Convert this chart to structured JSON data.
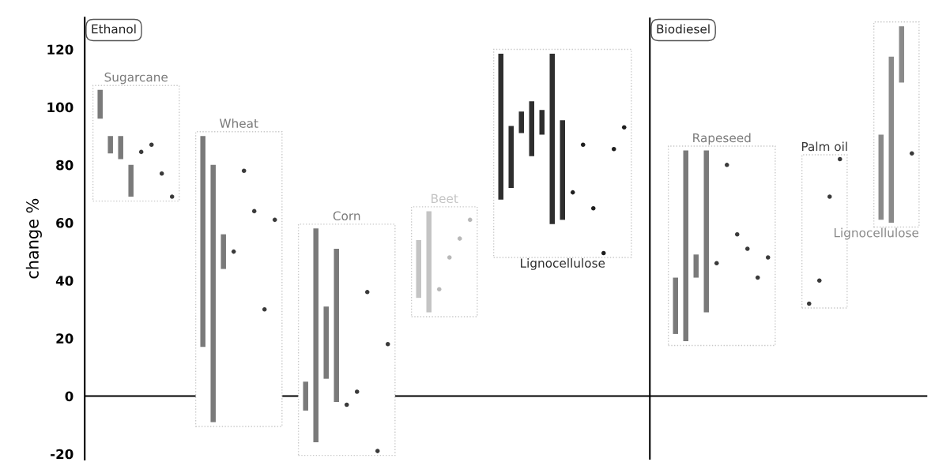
{
  "chart_data": {
    "type": "bar",
    "ylabel": "change %",
    "ylim": [
      -22,
      131
    ],
    "yticks": [
      -20,
      0,
      20,
      40,
      60,
      80,
      100,
      120
    ],
    "tick_labels": "y",
    "annotations": [
      "Ethanol",
      "Biodiesel"
    ],
    "categories": [
      null,
      null,
      null,
      null,
      null,
      null,
      null,
      null,
      null,
      null,
      null,
      null,
      null,
      null,
      null,
      null,
      null,
      null,
      null,
      null,
      null,
      null,
      null,
      null,
      null,
      null,
      null,
      null,
      null,
      null,
      null,
      null,
      null,
      null,
      null,
      null,
      null,
      null,
      null,
      null,
      null,
      null,
      null,
      null,
      null,
      null,
      null,
      null,
      null,
      null,
      null,
      null,
      null,
      null,
      null,
      null,
      null,
      null,
      null,
      null,
      null,
      null,
      null,
      null,
      null,
      null,
      null,
      null,
      null,
      null,
      null,
      null,
      null,
      null,
      null,
      null,
      null,
      null,
      null,
      null,
      null,
      null
    ],
    "ref_lines": [
      {
        "axis": "y",
        "value": 0,
        "color": "#000000"
      }
    ],
    "series": [
      {
        "name": "Sugarcane",
        "color": "#7a7a7a",
        "values": [
          null,
          10,
          6,
          8,
          11,
          null,
          null,
          null,
          null,
          null,
          null,
          null,
          null,
          null,
          null,
          null,
          null,
          null,
          null,
          null,
          null,
          null,
          null,
          null,
          null,
          null,
          null,
          null,
          null,
          null,
          null,
          null,
          null,
          null,
          null,
          null,
          null,
          null,
          null,
          null,
          null,
          null,
          null,
          null,
          null,
          null,
          null,
          null,
          null,
          null,
          null,
          null,
          null,
          null,
          null,
          null,
          null,
          null,
          null,
          null,
          null,
          null,
          null,
          null,
          null,
          null,
          null,
          null,
          null,
          null,
          null,
          null,
          null,
          null,
          null,
          null,
          null,
          null,
          null,
          null,
          null,
          null
        ],
        "base": [
          null,
          96,
          84,
          82,
          69,
          null,
          null,
          null,
          null,
          null,
          null,
          null,
          null,
          null,
          null,
          null,
          null,
          null,
          null,
          null,
          null,
          null,
          null,
          null,
          null,
          null,
          null,
          null,
          null,
          null,
          null,
          null,
          null,
          null,
          null,
          null,
          null,
          null,
          null,
          null,
          null,
          null,
          null,
          null,
          null,
          null,
          null,
          null,
          null,
          null,
          null,
          null,
          null,
          null,
          null,
          null,
          null,
          null,
          null,
          null,
          null,
          null,
          null,
          null,
          null,
          null,
          null,
          null,
          null,
          null,
          null,
          null,
          null,
          null,
          null,
          null,
          null,
          null,
          null,
          null,
          null,
          null
        ]
      },
      {
        "type": "scatter",
        "marker": "circle",
        "color": "#3a3a3a",
        "values": [
          null,
          null,
          null,
          null,
          null,
          84.5,
          87,
          77,
          69,
          null,
          null,
          null,
          null,
          null,
          null,
          null,
          null,
          null,
          null,
          null,
          null,
          null,
          null,
          null,
          null,
          null,
          null,
          null,
          null,
          null,
          null,
          null,
          null,
          null,
          null,
          null,
          null,
          null,
          null,
          null,
          null,
          null,
          null,
          null,
          null,
          null,
          null,
          null,
          null,
          null,
          null,
          null,
          null,
          null,
          null,
          null,
          null,
          null,
          null,
          null,
          null,
          null,
          null,
          null,
          null,
          null,
          null,
          null,
          null,
          null,
          null,
          null,
          null,
          null,
          null,
          null,
          null,
          null,
          null,
          null,
          null,
          null
        ]
      },
      {
        "name": "Wheat",
        "color": "#7a7a7a",
        "values": [
          null,
          null,
          null,
          null,
          null,
          null,
          null,
          null,
          null,
          null,
          null,
          73,
          89,
          12,
          null,
          null,
          null,
          null,
          null,
          null,
          null,
          null,
          null,
          null,
          null,
          null,
          null,
          null,
          null,
          null,
          null,
          null,
          null,
          null,
          null,
          null,
          null,
          null,
          null,
          null,
          null,
          null,
          null,
          null,
          null,
          null,
          null,
          null,
          null,
          null,
          null,
          null,
          null,
          null,
          null,
          null,
          null,
          null,
          null,
          null,
          null,
          null,
          null,
          null,
          null,
          null,
          null,
          null,
          null,
          null,
          null,
          null,
          null,
          null,
          null,
          null,
          null,
          null,
          null,
          null,
          null,
          null
        ],
        "base": [
          null,
          null,
          null,
          null,
          null,
          null,
          null,
          null,
          null,
          null,
          null,
          17,
          -9,
          44,
          null,
          null,
          null,
          null,
          null,
          null,
          null,
          null,
          null,
          null,
          null,
          null,
          null,
          null,
          null,
          null,
          null,
          null,
          null,
          null,
          null,
          null,
          null,
          null,
          null,
          null,
          null,
          null,
          null,
          null,
          null,
          null,
          null,
          null,
          null,
          null,
          null,
          null,
          null,
          null,
          null,
          null,
          null,
          null,
          null,
          null,
          null,
          null,
          null,
          null,
          null,
          null,
          null,
          null,
          null,
          null,
          null,
          null,
          null,
          null,
          null,
          null,
          null,
          null,
          null,
          null,
          null,
          null
        ]
      },
      {
        "type": "scatter",
        "marker": "circle",
        "color": "#3a3a3a",
        "values": [
          null,
          null,
          null,
          null,
          null,
          null,
          null,
          null,
          null,
          null,
          null,
          null,
          null,
          null,
          50,
          78,
          64,
          30,
          61,
          null,
          null,
          null,
          null,
          null,
          null,
          null,
          null,
          null,
          null,
          null,
          null,
          null,
          null,
          null,
          null,
          null,
          null,
          null,
          null,
          null,
          null,
          null,
          null,
          null,
          null,
          null,
          null,
          null,
          null,
          null,
          null,
          null,
          null,
          null,
          null,
          null,
          null,
          null,
          null,
          null,
          null,
          null,
          null,
          null,
          null,
          null,
          null,
          null,
          null,
          null,
          null,
          null,
          null,
          null,
          null,
          null,
          null,
          null,
          null,
          null,
          null,
          null
        ]
      },
      {
        "name": "Corn",
        "color": "#7a7a7a",
        "values": [
          null,
          null,
          null,
          null,
          null,
          null,
          null,
          null,
          null,
          null,
          null,
          null,
          null,
          null,
          null,
          null,
          null,
          null,
          null,
          null,
          null,
          10,
          74,
          25,
          53,
          null,
          null,
          null,
          null,
          null,
          null,
          null,
          null,
          null,
          null,
          null,
          null,
          null,
          null,
          null,
          null,
          null,
          null,
          null,
          null,
          null,
          null,
          null,
          null,
          null,
          null,
          null,
          null,
          null,
          null,
          null,
          null,
          null,
          null,
          null,
          null,
          null,
          null,
          null,
          null,
          null,
          null,
          null,
          null,
          null,
          null,
          null,
          null,
          null,
          null,
          null,
          null,
          null,
          null,
          null,
          null,
          null
        ],
        "base": [
          null,
          null,
          null,
          null,
          null,
          null,
          null,
          null,
          null,
          null,
          null,
          null,
          null,
          null,
          null,
          null,
          null,
          null,
          null,
          null,
          null,
          -5,
          -16,
          6,
          -2,
          null,
          null,
          null,
          null,
          null,
          null,
          null,
          null,
          null,
          null,
          null,
          null,
          null,
          null,
          null,
          null,
          null,
          null,
          null,
          null,
          null,
          null,
          null,
          null,
          null,
          null,
          null,
          null,
          null,
          null,
          null,
          null,
          null,
          null,
          null,
          null,
          null,
          null,
          null,
          null,
          null,
          null,
          null,
          null,
          null,
          null,
          null,
          null,
          null,
          null,
          null,
          null,
          null,
          null,
          null,
          null,
          null
        ]
      },
      {
        "type": "scatter",
        "marker": "circle",
        "color": "#3a3a3a",
        "values": [
          null,
          null,
          null,
          null,
          null,
          null,
          null,
          null,
          null,
          null,
          null,
          null,
          null,
          null,
          null,
          null,
          null,
          null,
          null,
          null,
          null,
          null,
          null,
          null,
          null,
          -3,
          1.5,
          36,
          -19,
          18,
          null,
          null,
          null,
          null,
          null,
          null,
          null,
          null,
          null,
          null,
          null,
          null,
          null,
          null,
          null,
          null,
          null,
          null,
          null,
          null,
          null,
          null,
          null,
          null,
          null,
          null,
          null,
          null,
          null,
          null,
          null,
          null,
          null,
          null,
          null,
          null,
          null,
          null,
          null,
          null,
          null,
          null,
          null,
          null,
          null,
          null,
          null,
          null,
          null,
          null,
          null,
          null
        ]
      },
      {
        "name": "Beet",
        "color": "#c4c4c4",
        "values": [
          null,
          null,
          null,
          null,
          null,
          null,
          null,
          null,
          null,
          null,
          null,
          null,
          null,
          null,
          null,
          null,
          null,
          null,
          null,
          null,
          null,
          null,
          null,
          null,
          null,
          null,
          null,
          null,
          null,
          null,
          null,
          null,
          20,
          35,
          null,
          null,
          null,
          null,
          null,
          null,
          null,
          null,
          null,
          null,
          null,
          null,
          null,
          null,
          null,
          null,
          null,
          null,
          null,
          null,
          null,
          null,
          null,
          null,
          null,
          null,
          null,
          null,
          null,
          null,
          null,
          null,
          null,
          null,
          null,
          null,
          null,
          null,
          null,
          null,
          null,
          null,
          null,
          null,
          null,
          null,
          null,
          null
        ],
        "base": [
          null,
          null,
          null,
          null,
          null,
          null,
          null,
          null,
          null,
          null,
          null,
          null,
          null,
          null,
          null,
          null,
          null,
          null,
          null,
          null,
          null,
          null,
          null,
          null,
          null,
          null,
          null,
          null,
          null,
          null,
          null,
          null,
          34,
          29,
          null,
          null,
          null,
          null,
          null,
          null,
          null,
          null,
          null,
          null,
          null,
          null,
          null,
          null,
          null,
          null,
          null,
          null,
          null,
          null,
          null,
          null,
          null,
          null,
          null,
          null,
          null,
          null,
          null,
          null,
          null,
          null,
          null,
          null,
          null,
          null,
          null,
          null,
          null,
          null,
          null,
          null,
          null,
          null,
          null,
          null,
          null,
          null
        ]
      },
      {
        "type": "scatter",
        "marker": "circle",
        "color": "#b8b8b8",
        "values": [
          null,
          null,
          null,
          null,
          null,
          null,
          null,
          null,
          null,
          null,
          null,
          null,
          null,
          null,
          null,
          null,
          null,
          null,
          null,
          null,
          null,
          null,
          null,
          null,
          null,
          null,
          null,
          null,
          null,
          null,
          null,
          null,
          null,
          null,
          37,
          48,
          54.5,
          61,
          null,
          null,
          null,
          null,
          null,
          null,
          null,
          null,
          null,
          null,
          null,
          null,
          null,
          null,
          null,
          null,
          null,
          null,
          null,
          null,
          null,
          null,
          null,
          null,
          null,
          null,
          null,
          null,
          null,
          null,
          null,
          null,
          null,
          null,
          null,
          null,
          null,
          null,
          null,
          null,
          null,
          null,
          null,
          null
        ]
      },
      {
        "name": "Lignocellulose",
        "color": "#2e2e2e",
        "values": [
          null,
          null,
          null,
          null,
          null,
          null,
          null,
          null,
          null,
          null,
          null,
          null,
          null,
          null,
          null,
          null,
          null,
          null,
          null,
          null,
          null,
          null,
          null,
          null,
          null,
          null,
          null,
          null,
          null,
          null,
          null,
          null,
          null,
          null,
          null,
          null,
          null,
          null,
          null,
          null,
          50.5,
          21.5,
          7.5,
          19,
          8.5,
          59,
          34.5,
          null,
          null,
          null,
          null,
          null,
          null,
          null,
          null,
          null,
          null,
          null,
          null,
          null,
          null,
          null,
          null,
          null,
          null,
          null,
          null,
          null,
          null,
          null,
          null,
          null,
          null,
          null,
          null,
          null,
          null,
          null,
          null,
          null,
          null,
          null
        ],
        "base": [
          null,
          null,
          null,
          null,
          null,
          null,
          null,
          null,
          null,
          null,
          null,
          null,
          null,
          null,
          null,
          null,
          null,
          null,
          null,
          null,
          null,
          null,
          null,
          null,
          null,
          null,
          null,
          null,
          null,
          null,
          null,
          null,
          null,
          null,
          null,
          null,
          null,
          null,
          null,
          null,
          68,
          72,
          91,
          83,
          90.5,
          59.5,
          61,
          null,
          null,
          null,
          null,
          null,
          null,
          null,
          null,
          null,
          null,
          null,
          null,
          null,
          null,
          null,
          null,
          null,
          null,
          null,
          null,
          null,
          null,
          null,
          null,
          null,
          null,
          null,
          null,
          null,
          null,
          null,
          null,
          null,
          null,
          null
        ]
      },
      {
        "type": "scatter",
        "marker": "circle",
        "color": "#1e1e1e",
        "values": [
          null,
          null,
          null,
          null,
          null,
          null,
          null,
          null,
          null,
          null,
          null,
          null,
          null,
          null,
          null,
          null,
          null,
          null,
          null,
          null,
          null,
          null,
          null,
          null,
          null,
          null,
          null,
          null,
          null,
          null,
          null,
          null,
          null,
          null,
          null,
          null,
          null,
          null,
          null,
          null,
          null,
          null,
          null,
          null,
          null,
          null,
          null,
          70.5,
          87,
          65,
          49.5,
          85.5,
          93,
          null,
          null,
          null,
          null,
          null,
          null,
          null,
          null,
          null,
          null,
          null,
          null,
          null,
          null,
          null,
          null,
          null,
          null,
          null,
          null,
          null,
          null,
          null,
          null,
          null,
          null,
          null,
          null,
          null
        ]
      },
      {
        "name": "Rapeseed",
        "color": "#7a7a7a",
        "values": [
          null,
          null,
          null,
          null,
          null,
          null,
          null,
          null,
          null,
          null,
          null,
          null,
          null,
          null,
          null,
          null,
          null,
          null,
          null,
          null,
          null,
          null,
          null,
          null,
          null,
          null,
          null,
          null,
          null,
          null,
          null,
          null,
          null,
          null,
          null,
          null,
          null,
          null,
          null,
          null,
          null,
          null,
          null,
          null,
          null,
          null,
          null,
          null,
          null,
          null,
          null,
          null,
          null,
          null,
          null,
          null,
          null,
          19.5,
          66,
          8,
          56,
          null,
          null,
          null,
          null,
          null,
          null,
          null,
          null,
          null,
          null,
          null,
          null,
          null,
          null,
          null,
          null,
          null,
          null,
          null,
          null,
          null
        ],
        "base": [
          null,
          null,
          null,
          null,
          null,
          null,
          null,
          null,
          null,
          null,
          null,
          null,
          null,
          null,
          null,
          null,
          null,
          null,
          null,
          null,
          null,
          null,
          null,
          null,
          null,
          null,
          null,
          null,
          null,
          null,
          null,
          null,
          null,
          null,
          null,
          null,
          null,
          null,
          null,
          null,
          null,
          null,
          null,
          null,
          null,
          null,
          null,
          null,
          null,
          null,
          null,
          null,
          null,
          null,
          null,
          null,
          null,
          21.5,
          19,
          41,
          29,
          null,
          null,
          null,
          null,
          null,
          null,
          null,
          null,
          null,
          null,
          null,
          null,
          null,
          null,
          null,
          null,
          null,
          null,
          null,
          null,
          null
        ]
      },
      {
        "type": "scatter",
        "marker": "circle",
        "color": "#3a3a3a",
        "values": [
          null,
          null,
          null,
          null,
          null,
          null,
          null,
          null,
          null,
          null,
          null,
          null,
          null,
          null,
          null,
          null,
          null,
          null,
          null,
          null,
          null,
          null,
          null,
          null,
          null,
          null,
          null,
          null,
          null,
          null,
          null,
          null,
          null,
          null,
          null,
          null,
          null,
          null,
          null,
          null,
          null,
          null,
          null,
          null,
          null,
          null,
          null,
          null,
          null,
          null,
          null,
          null,
          null,
          null,
          null,
          null,
          null,
          null,
          null,
          null,
          null,
          46,
          80,
          56,
          51,
          41,
          48,
          null,
          null,
          null,
          null,
          null,
          null,
          null,
          null,
          null,
          null,
          null,
          null,
          null,
          null,
          null
        ]
      },
      {
        "name": "Palm oil",
        "type": "scatter",
        "marker": "circle",
        "color": "#3a3a3a",
        "values": [
          null,
          null,
          null,
          null,
          null,
          null,
          null,
          null,
          null,
          null,
          null,
          null,
          null,
          null,
          null,
          null,
          null,
          null,
          null,
          null,
          null,
          null,
          null,
          null,
          null,
          null,
          null,
          null,
          null,
          null,
          null,
          null,
          null,
          null,
          null,
          null,
          null,
          null,
          null,
          null,
          null,
          null,
          null,
          null,
          null,
          null,
          null,
          null,
          null,
          null,
          null,
          null,
          null,
          null,
          null,
          null,
          null,
          null,
          null,
          null,
          null,
          null,
          null,
          null,
          null,
          null,
          null,
          null,
          null,
          null,
          32,
          40,
          69,
          82,
          null,
          null,
          null,
          null,
          null,
          null,
          null,
          null
        ]
      },
      {
        "name": "Lignocellulose",
        "color": "#8a8a8a",
        "values": [
          null,
          null,
          null,
          null,
          null,
          null,
          null,
          null,
          null,
          null,
          null,
          null,
          null,
          null,
          null,
          null,
          null,
          null,
          null,
          null,
          null,
          null,
          null,
          null,
          null,
          null,
          null,
          null,
          null,
          null,
          null,
          null,
          null,
          null,
          null,
          null,
          null,
          null,
          null,
          null,
          null,
          null,
          null,
          null,
          null,
          null,
          null,
          null,
          null,
          null,
          null,
          null,
          null,
          null,
          null,
          null,
          null,
          null,
          null,
          null,
          null,
          null,
          null,
          null,
          null,
          null,
          null,
          null,
          null,
          null,
          null,
          null,
          null,
          null,
          null,
          null,
          null,
          29.5,
          57.5,
          19.5,
          null,
          null
        ],
        "base": [
          null,
          null,
          null,
          null,
          null,
          null,
          null,
          null,
          null,
          null,
          null,
          null,
          null,
          null,
          null,
          null,
          null,
          null,
          null,
          null,
          null,
          null,
          null,
          null,
          null,
          null,
          null,
          null,
          null,
          null,
          null,
          null,
          null,
          null,
          null,
          null,
          null,
          null,
          null,
          null,
          null,
          null,
          null,
          null,
          null,
          null,
          null,
          null,
          null,
          null,
          null,
          null,
          null,
          null,
          null,
          null,
          null,
          null,
          null,
          null,
          null,
          null,
          null,
          null,
          null,
          null,
          null,
          null,
          null,
          null,
          null,
          null,
          null,
          null,
          null,
          null,
          null,
          61,
          60,
          108.5,
          null,
          null
        ]
      },
      {
        "type": "scatter",
        "marker": "circle",
        "color": "#3a3a3a",
        "values": [
          null,
          null,
          null,
          null,
          null,
          null,
          null,
          null,
          null,
          null,
          null,
          null,
          null,
          null,
          null,
          null,
          null,
          null,
          null,
          null,
          null,
          null,
          null,
          null,
          null,
          null,
          null,
          null,
          null,
          null,
          null,
          null,
          null,
          null,
          null,
          null,
          null,
          null,
          null,
          null,
          null,
          null,
          null,
          null,
          null,
          null,
          null,
          null,
          null,
          null,
          null,
          null,
          null,
          null,
          null,
          null,
          null,
          null,
          null,
          null,
          null,
          null,
          null,
          null,
          null,
          null,
          null,
          null,
          null,
          null,
          null,
          null,
          null,
          null,
          null,
          null,
          null,
          null,
          null,
          null,
          84,
          null
        ]
      }
    ]
  }
}
